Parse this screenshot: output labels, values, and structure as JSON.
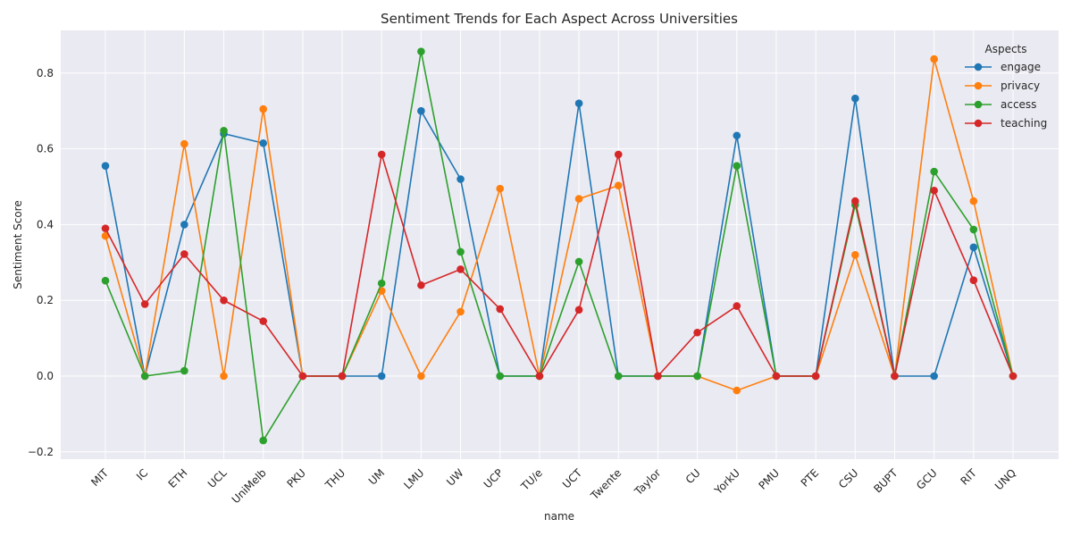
{
  "chart_data": {
    "type": "line",
    "title": "Sentiment Trends for Each Aspect Across Universities",
    "xlabel": "name",
    "ylabel": "Sentiment Score",
    "categories": [
      "MIT",
      "IC",
      "ETH",
      "UCL",
      "UniMelb",
      "PKU",
      "THU",
      "UM",
      "LMU",
      "UW",
      "UCP",
      "TU/e",
      "UCT",
      "Twente",
      "Taylor",
      "CU",
      "YorkU",
      "PMU",
      "PTE",
      "CSU",
      "BUPT",
      "GCU",
      "RIT",
      "UNQ"
    ],
    "ylim": [
      -0.22,
      0.9
    ],
    "yticks": [
      -0.2,
      0.0,
      0.2,
      0.4,
      0.6,
      0.8
    ],
    "ytick_labels": [
      "−0.2",
      "0.0",
      "0.2",
      "0.4",
      "0.6",
      "0.8"
    ],
    "grid": true,
    "legend_title": "Aspects",
    "legend_position": "top-right",
    "series": [
      {
        "name": "engage",
        "color": "#1f77b4",
        "values": [
          0.555,
          0,
          0.4,
          0.64,
          0.615,
          0,
          0,
          0,
          0.7,
          0.52,
          0,
          0,
          0.72,
          0,
          0,
          0,
          0.635,
          0,
          0,
          0.733,
          0,
          0,
          0.34,
          0
        ]
      },
      {
        "name": "privacy",
        "color": "#ff7f0e",
        "values": [
          0.37,
          0,
          0.613,
          0,
          0.705,
          0,
          0,
          0.225,
          0,
          0.17,
          0.495,
          0,
          0.468,
          0.503,
          0,
          0,
          -0.038,
          0,
          0,
          0.32,
          0,
          0.837,
          0.462,
          0
        ]
      },
      {
        "name": "access",
        "color": "#2ca02c",
        "values": [
          0.252,
          0,
          0.014,
          0.648,
          -0.17,
          0,
          0,
          0.245,
          0.857,
          0.328,
          0,
          0,
          0.302,
          0,
          0,
          0,
          0.555,
          0,
          0,
          0.452,
          0,
          0.54,
          0.387,
          0
        ]
      },
      {
        "name": "teaching",
        "color": "#d62728",
        "values": [
          0.39,
          0.19,
          0.322,
          0.2,
          0.145,
          0,
          0,
          0.585,
          0.24,
          0.282,
          0.177,
          0,
          0.175,
          0.585,
          0,
          0.115,
          0.185,
          0,
          0,
          0.462,
          0,
          0.49,
          0.253,
          0
        ]
      }
    ]
  }
}
